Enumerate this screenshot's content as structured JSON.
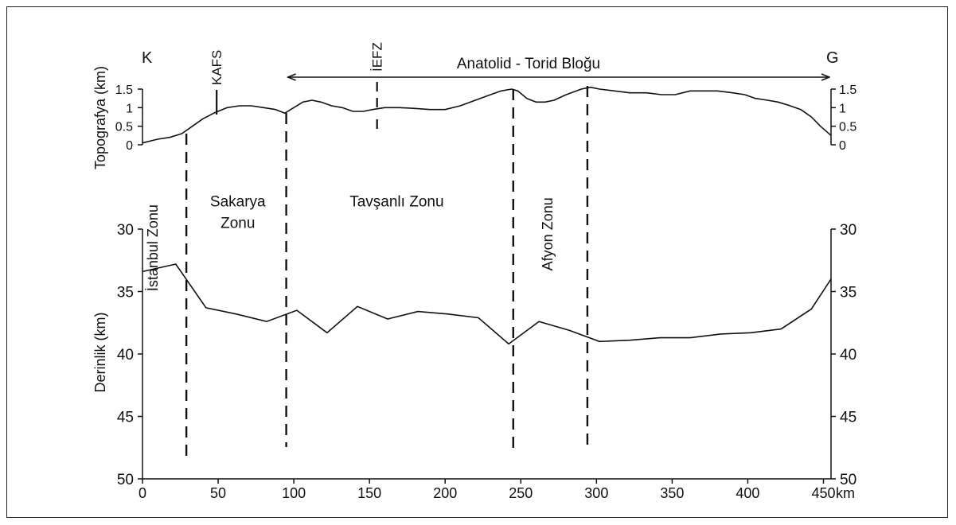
{
  "chart_data": {
    "type": "line",
    "corner_labels": {
      "left": "K",
      "right": "G"
    },
    "block_label": "Anatolid - Torid Bloğu",
    "block_range_km": [
      95,
      455
    ],
    "faults": [
      {
        "label": "KAFS",
        "x": 49
      },
      {
        "label": "İEFZ",
        "x": 155
      }
    ],
    "zones": [
      {
        "label": "İstanbul Zonu",
        "orientation": "vertical",
        "x": 10,
        "y": 31.5
      },
      {
        "label": "Sakarya",
        "orientation": "horizontal",
        "x": 63,
        "y": 28.2
      },
      {
        "label": "Zonu",
        "orientation": "horizontal",
        "x": 63,
        "y": 29.9
      },
      {
        "label": "Tavşanlı Zonu",
        "orientation": "horizontal",
        "x": 168,
        "y": 28.2
      },
      {
        "label": "Afyon Zonu",
        "orientation": "vertical",
        "x": 271,
        "y": 30.4
      }
    ],
    "zone_boundaries_km": [
      29,
      95,
      245,
      294
    ],
    "x_axis": {
      "ticks": [
        0,
        50,
        100,
        150,
        200,
        250,
        300,
        350,
        400,
        450
      ],
      "unit": "km",
      "range": [
        0,
        455
      ]
    },
    "topography": {
      "ylabel": "Topografya (km)",
      "ylim": [
        0,
        1.5
      ],
      "ticks": [
        "0",
        "0.5",
        "1",
        "1.5"
      ],
      "x": [
        0,
        10,
        18,
        26,
        33,
        40,
        47,
        56,
        64,
        72,
        80,
        88,
        94,
        100,
        106,
        112,
        118,
        125,
        132,
        139,
        146,
        152,
        160,
        170,
        180,
        190,
        200,
        210,
        220,
        230,
        237,
        244,
        248,
        254,
        260,
        266,
        272,
        280,
        290,
        296,
        302,
        312,
        322,
        333,
        343,
        352,
        362,
        370,
        380,
        390,
        398,
        405,
        413,
        420,
        428,
        435,
        442,
        448,
        455
      ],
      "y": [
        0.05,
        0.15,
        0.2,
        0.3,
        0.5,
        0.7,
        0.85,
        1.0,
        1.05,
        1.05,
        1.0,
        0.95,
        0.85,
        1.0,
        1.15,
        1.2,
        1.15,
        1.05,
        1.0,
        0.9,
        0.9,
        0.95,
        1.0,
        1.0,
        0.98,
        0.95,
        0.95,
        1.05,
        1.2,
        1.35,
        1.45,
        1.5,
        1.45,
        1.25,
        1.15,
        1.15,
        1.2,
        1.35,
        1.5,
        1.55,
        1.5,
        1.45,
        1.4,
        1.4,
        1.35,
        1.35,
        1.45,
        1.45,
        1.45,
        1.4,
        1.35,
        1.25,
        1.2,
        1.15,
        1.05,
        0.95,
        0.75,
        0.5,
        0.25
      ]
    },
    "depth": {
      "ylabel": "Derinlik (km)",
      "ylim": [
        30,
        50
      ],
      "ticks": [
        "30",
        "35",
        "40",
        "45",
        "50"
      ],
      "x": [
        0,
        22,
        42,
        62,
        82,
        102,
        122,
        142,
        162,
        182,
        202,
        222,
        242,
        262,
        282,
        302,
        322,
        342,
        362,
        382,
        402,
        422,
        442,
        455
      ],
      "y": [
        33.4,
        32.8,
        36.3,
        36.8,
        37.4,
        36.5,
        38.3,
        36.2,
        37.2,
        36.6,
        36.8,
        37.1,
        39.2,
        37.4,
        38.1,
        39.0,
        38.9,
        38.7,
        38.7,
        38.4,
        38.3,
        38.0,
        36.4,
        34.0
      ]
    }
  }
}
